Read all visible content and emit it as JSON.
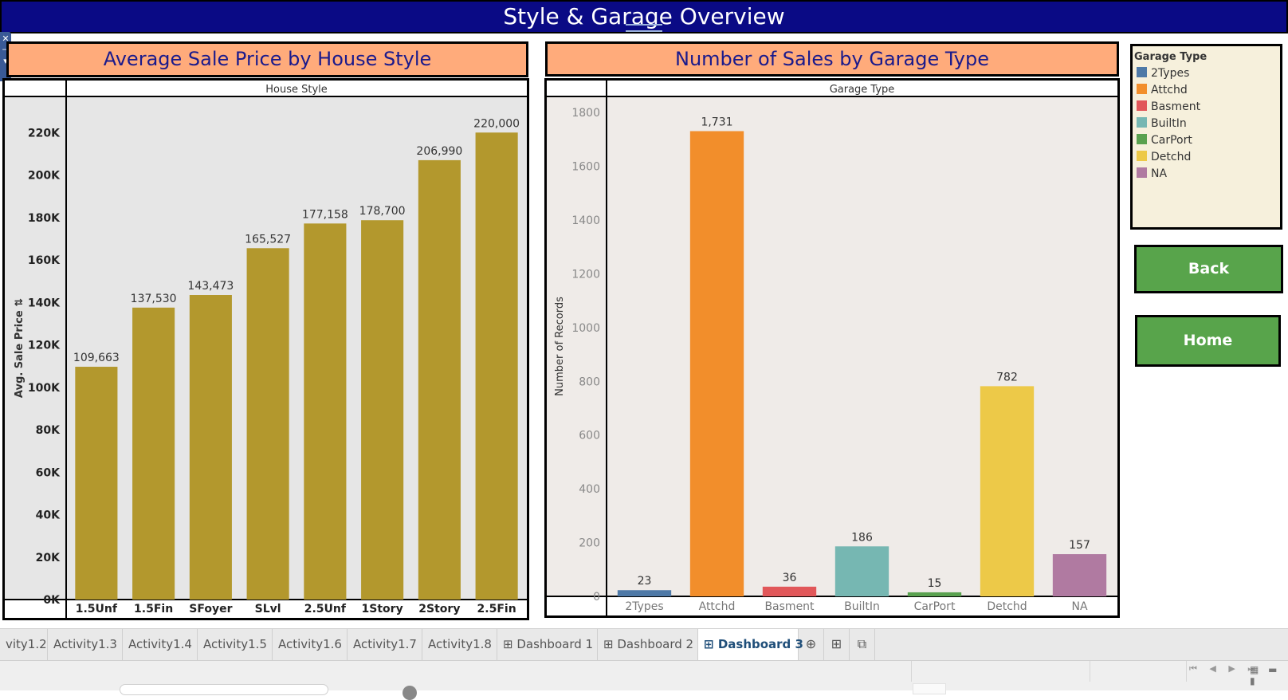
{
  "dashboard": {
    "title": "Style & Garage Overview"
  },
  "float_handle": {
    "close_glyph": "✕",
    "pin_glyph": "⊣",
    "menu_glyph": "▾"
  },
  "left_chart": {
    "panel_title": "Average Sale Price by House Style"
  },
  "right_chart": {
    "panel_title": "Number of Sales by Garage Type"
  },
  "chart_data": [
    {
      "type": "bar",
      "title": "Average Sale Price by House Style",
      "column_header": "House Style",
      "ylabel": "Avg. Sale Price",
      "sort_indicator": "⇅",
      "categories": [
        "1.5Unf",
        "1.5Fin",
        "SFoyer",
        "SLvl",
        "2.5Unf",
        "1Story",
        "2Story",
        "2.5Fin"
      ],
      "values": [
        109663,
        137530,
        143473,
        165527,
        177158,
        178700,
        206990,
        220000
      ],
      "value_labels": [
        "109,663",
        "137,530",
        "143,473",
        "165,527",
        "177,158",
        "178,700",
        "206,990",
        "220,000"
      ],
      "ylim": [
        0,
        237000
      ],
      "yticks": [
        0,
        20000,
        40000,
        60000,
        80000,
        100000,
        120000,
        140000,
        160000,
        180000,
        200000,
        220000
      ],
      "ytick_labels": [
        "0K",
        "20K",
        "40K",
        "60K",
        "80K",
        "100K",
        "120K",
        "140K",
        "160K",
        "180K",
        "200K",
        "220K"
      ],
      "bar_color": "#b3982d",
      "plot_bg": "#e6e6e6",
      "grid": false
    },
    {
      "type": "bar",
      "title": "Number of Sales by Garage Type",
      "column_header": "Garage Type",
      "ylabel": "Number of Records",
      "categories": [
        "2Types",
        "Attchd",
        "Basment",
        "BuiltIn",
        "CarPort",
        "Detchd",
        "NA"
      ],
      "values": [
        23,
        1731,
        36,
        186,
        15,
        782,
        157
      ],
      "value_labels": [
        "23",
        "1,731",
        "36",
        "186",
        "15",
        "782",
        "157"
      ],
      "ylim": [
        0,
        1860
      ],
      "yticks": [
        0,
        200,
        400,
        600,
        800,
        1000,
        1200,
        1400,
        1600,
        1800
      ],
      "ytick_labels": [
        "0",
        "200",
        "400",
        "600",
        "800",
        "1000",
        "1200",
        "1400",
        "1600",
        "1800"
      ],
      "colors": [
        "#4e79a7",
        "#f28e2b",
        "#e15759",
        "#76b7b2",
        "#59a14f",
        "#edc948",
        "#b07aa1"
      ],
      "plot_bg": "#efebe8",
      "grid": false
    }
  ],
  "legend": {
    "title": "Garage Type",
    "items": [
      {
        "label": "2Types",
        "color": "#4e79a7"
      },
      {
        "label": "Attchd",
        "color": "#f28e2b"
      },
      {
        "label": "Basment",
        "color": "#e15759"
      },
      {
        "label": "BuiltIn",
        "color": "#76b7b2"
      },
      {
        "label": "CarPort",
        "color": "#59a14f"
      },
      {
        "label": "Detchd",
        "color": "#edc948"
      },
      {
        "label": "NA",
        "color": "#b07aa1"
      }
    ]
  },
  "buttons": {
    "back": "Back",
    "home": "Home"
  },
  "tabs": [
    {
      "label": "vity1.2",
      "icon": ""
    },
    {
      "label": "Activity1.3",
      "icon": ""
    },
    {
      "label": "Activity1.4",
      "icon": ""
    },
    {
      "label": "Activity1.5",
      "icon": ""
    },
    {
      "label": "Activity1.6",
      "icon": ""
    },
    {
      "label": "Activity1.7",
      "icon": ""
    },
    {
      "label": "Activity1.8",
      "icon": ""
    },
    {
      "label": "Dashboard 1",
      "icon": "⊞"
    },
    {
      "label": "Dashboard 2",
      "icon": "⊞"
    },
    {
      "label": "Dashboard 3",
      "icon": "⊞",
      "active": true
    }
  ],
  "tab_actions": {
    "new_worksheet": "⊕",
    "new_dashboard": "⊞",
    "new_story": "⧉"
  },
  "status_bar": {
    "page_nav": "⏮ ◀ ▶ ⏭",
    "view_icons": "▦ ▬ ▮"
  }
}
